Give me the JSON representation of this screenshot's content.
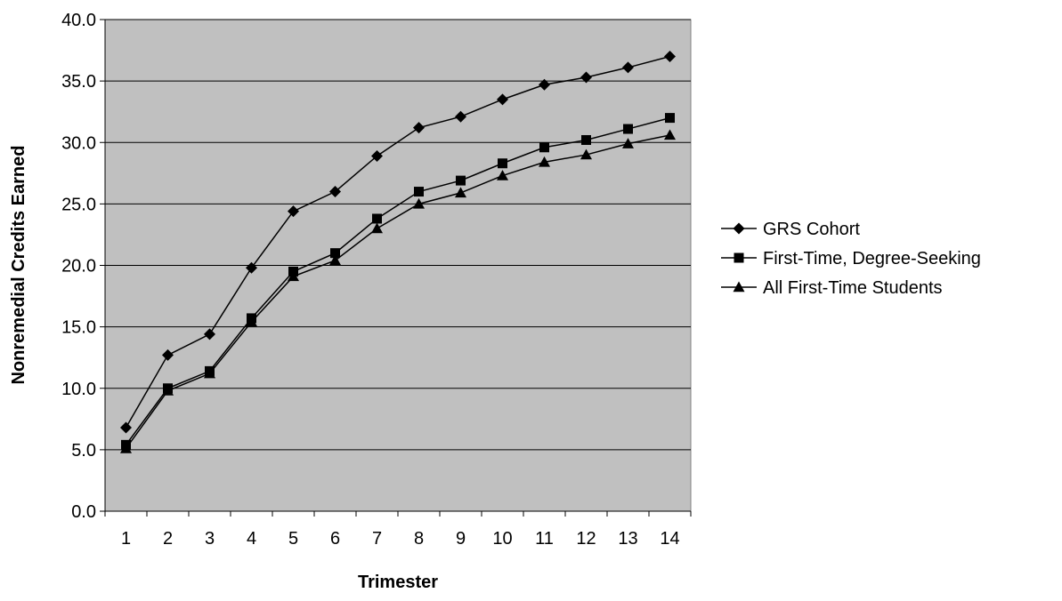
{
  "chart_data": {
    "type": "line",
    "title": "",
    "xlabel": "Trimester",
    "ylabel": "Nonremedial Credits Earned",
    "categories": [
      "1",
      "2",
      "3",
      "4",
      "5",
      "6",
      "7",
      "8",
      "9",
      "10",
      "11",
      "12",
      "13",
      "14"
    ],
    "ylim": [
      0,
      40
    ],
    "yticks": [
      "0.0",
      "5.0",
      "10.0",
      "15.0",
      "20.0",
      "25.0",
      "30.0",
      "35.0",
      "40.0"
    ],
    "grid": true,
    "plot_background": "#c0c0c0",
    "line_color": "#000000",
    "legend_position": "right",
    "series": [
      {
        "name": "GRS Cohort",
        "marker": "diamond",
        "values": [
          6.8,
          12.7,
          14.4,
          19.8,
          24.4,
          26.0,
          28.9,
          31.2,
          32.1,
          33.5,
          34.7,
          35.3,
          36.1,
          37.0
        ]
      },
      {
        "name": "First-Time, Degree-Seeking",
        "marker": "square",
        "values": [
          5.4,
          10.0,
          11.4,
          15.7,
          19.5,
          21.0,
          23.8,
          26.0,
          26.9,
          28.3,
          29.6,
          30.2,
          31.1,
          32.0
        ]
      },
      {
        "name": "All First-Time Students",
        "marker": "triangle",
        "values": [
          5.1,
          9.8,
          11.2,
          15.4,
          19.1,
          20.4,
          23.0,
          25.0,
          25.9,
          27.3,
          28.4,
          29.0,
          29.9,
          30.6
        ]
      }
    ]
  }
}
